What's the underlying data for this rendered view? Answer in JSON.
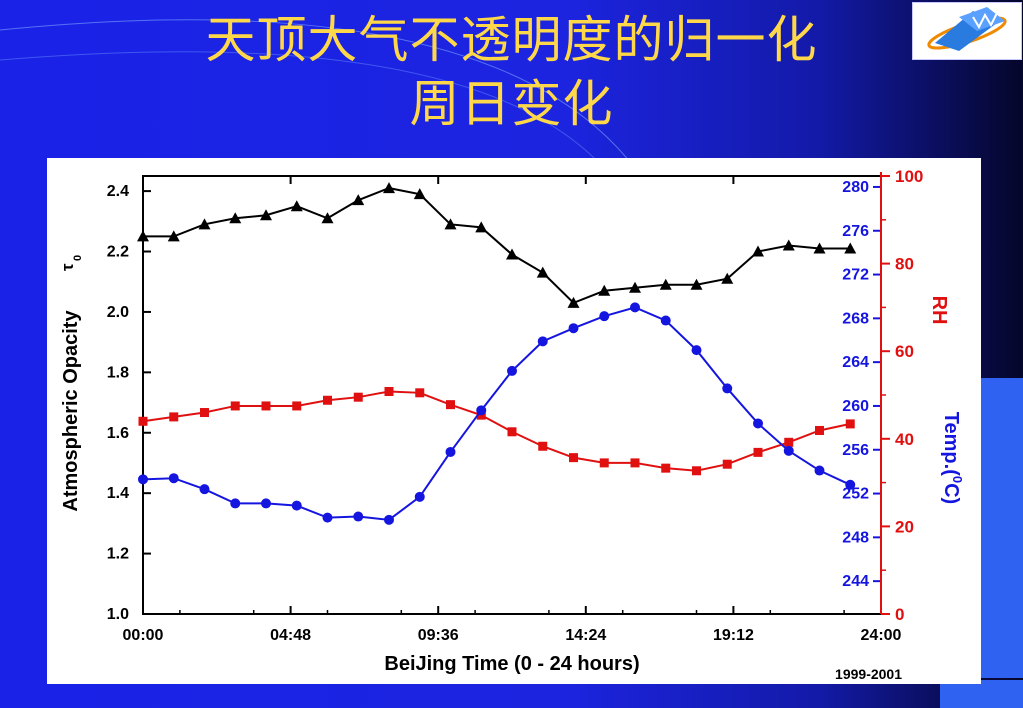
{
  "title_line1": "天顶大气不透明度的归一化",
  "title_line2": "周日变化",
  "logo": {
    "icon": "institution-logo-icon",
    "color": "#2a7be0",
    "accent": "#f08a00"
  },
  "chart_data": {
    "type": "line",
    "xlabel": "BeiJing Time (0 - 24 hours)",
    "x_ticks": [
      "00:00",
      "04:48",
      "09:36",
      "14:24",
      "19:12",
      "24:00"
    ],
    "xlim": [
      0,
      24
    ],
    "note": "1999-2001",
    "axes": {
      "left": {
        "label": "Atmospheric Opacity",
        "symbol": "τ",
        "subscript": "0",
        "ylim": [
          1.0,
          2.45
        ],
        "ticks": [
          "1.0",
          "1.2",
          "1.4",
          "1.6",
          "1.8",
          "2.0",
          "2.2",
          "2.4"
        ],
        "color": "#000000"
      },
      "right_temp": {
        "label": "Temp.(",
        "sup": "0",
        "label_end": "C)",
        "ylim": [
          241,
          281
        ],
        "ticks": [
          "244",
          "248",
          "252",
          "256",
          "260",
          "264",
          "268",
          "272",
          "276",
          "280"
        ],
        "color": "#1515e0"
      },
      "right_rh": {
        "label": "RH",
        "ylim": [
          0,
          100
        ],
        "ticks": [
          "0",
          "20",
          "40",
          "60",
          "80",
          "100"
        ],
        "color": "#e01010"
      }
    },
    "x": [
      0,
      1,
      2,
      3,
      4,
      5,
      6,
      7,
      8,
      9,
      10,
      11,
      12,
      13,
      14,
      15,
      16,
      17,
      18,
      19,
      20,
      21,
      22,
      23
    ],
    "series": [
      {
        "axis": "left",
        "color": "#000000",
        "marker": "triangle",
        "values": [
          2.25,
          2.25,
          2.29,
          2.31,
          2.32,
          2.35,
          2.31,
          2.37,
          2.41,
          2.39,
          2.29,
          2.28,
          2.19,
          2.13,
          2.03,
          2.07,
          2.08,
          2.09,
          2.09,
          2.11,
          2.2,
          2.22,
          2.21,
          2.21
        ]
      },
      {
        "axis": "right_rh",
        "color": "#e01010",
        "marker": "square",
        "values": [
          44,
          45,
          46,
          47.5,
          47.5,
          47.5,
          48.8,
          49.5,
          50.8,
          50.5,
          47.8,
          45.4,
          41.6,
          38.3,
          35.7,
          34.5,
          34.5,
          33.3,
          32.7,
          34.2,
          36.9,
          39.2,
          41.9,
          43.4
        ]
      },
      {
        "axis": "right_temp",
        "color": "#1515e0",
        "marker": "circle",
        "values": [
          253.3,
          253.4,
          252.4,
          251.1,
          251.1,
          250.9,
          249.8,
          249.9,
          249.6,
          251.7,
          255.8,
          259.6,
          263.2,
          265.9,
          267.1,
          268.2,
          269.0,
          267.8,
          265.1,
          261.6,
          258.4,
          255.9,
          254.1,
          252.8
        ]
      }
    ]
  }
}
